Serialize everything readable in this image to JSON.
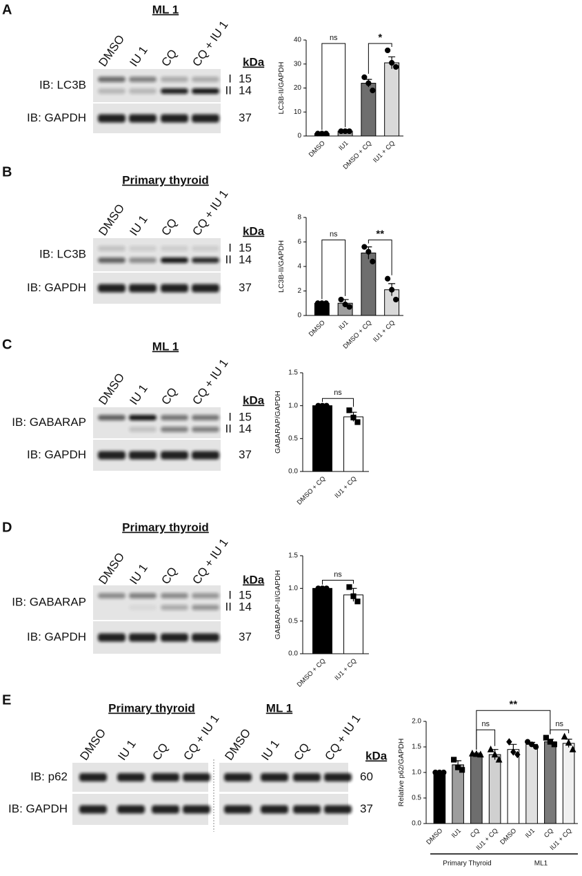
{
  "blots": [
    {
      "letter": "A",
      "kda_header": "kDa",
      "groups": [
        {
          "title": "ML 1",
          "lanes": [
            "DMSO",
            "IU 1",
            "CQ",
            "CQ + IU 1"
          ]
        }
      ],
      "rows": [
        {
          "label": "IB: LC3B",
          "bands": [
            {
              "form": "I",
              "kda": 15
            },
            {
              "form": "II",
              "kda": 14
            }
          ]
        },
        {
          "label": "IB: GAPDH",
          "bands": [
            {
              "kda": 37
            }
          ]
        }
      ]
    },
    {
      "letter": "B",
      "kda_header": "kDa",
      "groups": [
        {
          "title": "Primary thyroid",
          "lanes": [
            "DMSO",
            "IU 1",
            "CQ",
            "CQ + IU 1"
          ]
        }
      ],
      "rows": [
        {
          "label": "IB: LC3B",
          "bands": [
            {
              "form": "I",
              "kda": 15
            },
            {
              "form": "II",
              "kda": 14
            }
          ]
        },
        {
          "label": "IB: GAPDH",
          "bands": [
            {
              "kda": 37
            }
          ]
        }
      ]
    },
    {
      "letter": "C",
      "kda_header": "kDa",
      "groups": [
        {
          "title": "ML 1",
          "lanes": [
            "DMSO",
            "IU 1",
            "CQ",
            "CQ + IU 1"
          ]
        }
      ],
      "rows": [
        {
          "label": "IB: GABARAP",
          "bands": [
            {
              "form": "I",
              "kda": 15
            },
            {
              "form": "II",
              "kda": 14
            }
          ]
        },
        {
          "label": "IB: GAPDH",
          "bands": [
            {
              "kda": 37
            }
          ]
        }
      ]
    },
    {
      "letter": "D",
      "kda_header": "kDa",
      "groups": [
        {
          "title": "Primary thyroid",
          "lanes": [
            "DMSO",
            "IU 1",
            "CQ",
            "CQ + IU 1"
          ]
        }
      ],
      "rows": [
        {
          "label": "IB: GABARAP",
          "bands": [
            {
              "form": "I",
              "kda": 15
            },
            {
              "form": "II",
              "kda": 14
            }
          ]
        },
        {
          "label": "IB: GAPDH",
          "bands": [
            {
              "kda": 37
            }
          ]
        }
      ]
    },
    {
      "letter": "E",
      "kda_header": "kDa",
      "groups": [
        {
          "title": "Primary thyroid",
          "lanes": [
            "DMSO",
            "IU 1",
            "CQ",
            "CQ + IU 1"
          ]
        },
        {
          "title": "ML 1",
          "lanes": [
            "DMSO",
            "IU 1",
            "CQ",
            "CQ + IU 1"
          ]
        }
      ],
      "rows": [
        {
          "label": "IB: p62",
          "bands": [
            {
              "kda": 60
            }
          ]
        },
        {
          "label": "IB: GAPDH",
          "bands": [
            {
              "kda": 37
            }
          ]
        }
      ]
    }
  ],
  "chart_data": [
    {
      "type": "bar",
      "ylabel": "LC3B-II/GAPDH",
      "categories": [
        "DMSO",
        "IU1",
        "DMSO + CQ",
        "IU1 + CQ"
      ],
      "values": [
        1,
        2,
        22,
        30.5
      ],
      "errors": [
        0.1,
        0.2,
        1.6,
        2.5
      ],
      "points": [
        [
          1,
          1,
          1
        ],
        [
          2,
          2,
          2
        ],
        [
          24.5,
          22,
          19
        ],
        [
          35.7,
          30.5,
          28.8
        ]
      ],
      "colors": [
        "#000000",
        "#9e9e9e",
        "#6e6e6e",
        "#d9d9d9"
      ],
      "markers": [
        "circle",
        "circle",
        "circle",
        "circle"
      ],
      "ylim": [
        0,
        40
      ],
      "yticks": [
        0,
        10,
        20,
        30,
        40
      ],
      "significance": [
        {
          "label": "ns",
          "pair": [
            0,
            1
          ]
        },
        {
          "label": "*",
          "pair": [
            2,
            3
          ]
        }
      ]
    },
    {
      "type": "bar",
      "ylabel": "LC3B-II/GAPDH",
      "categories": [
        "DMSO",
        "IU1",
        "DMSO + CQ",
        "IU1 + CQ"
      ],
      "values": [
        1,
        1,
        5.1,
        2.1
      ],
      "errors": [
        0.05,
        0.3,
        0.5,
        0.5
      ],
      "points": [
        [
          1,
          1,
          1
        ],
        [
          1.3,
          0.9,
          0.7
        ],
        [
          5.6,
          5.2,
          4.4
        ],
        [
          3,
          2.1,
          1.3
        ]
      ],
      "colors": [
        "#000000",
        "#9e9e9e",
        "#6e6e6e",
        "#d9d9d9"
      ],
      "markers": [
        "circle",
        "circle",
        "circle",
        "circle"
      ],
      "ylim": [
        0,
        8
      ],
      "yticks": [
        0,
        2,
        4,
        6,
        8
      ],
      "significance": [
        {
          "label": "ns",
          "pair": [
            0,
            1
          ]
        },
        {
          "label": "**",
          "pair": [
            2,
            3
          ]
        }
      ]
    },
    {
      "type": "bar",
      "ylabel": "GABARAP/GAPDH",
      "categories": [
        "DMSO + CQ",
        "IU1 + CQ"
      ],
      "values": [
        1,
        0.83
      ],
      "errors": [
        0.005,
        0.07
      ],
      "points": [
        [
          1,
          1,
          1
        ],
        [
          0.93,
          0.82,
          0.75
        ]
      ],
      "colors": [
        "#000000",
        "#ffffff"
      ],
      "markers": [
        "circle",
        "square"
      ],
      "ylim": [
        0,
        1.5
      ],
      "yticks": [
        {
          "value": 0,
          "label": "0.0"
        },
        0.5,
        {
          "value": 1,
          "label": "1.0"
        },
        1.5
      ],
      "significance": [
        {
          "label": "ns",
          "pair": [
            0,
            1
          ]
        }
      ]
    },
    {
      "type": "bar",
      "ylabel": "GABARAP-II/GAPDH",
      "categories": [
        "DMSO + CQ",
        "IU1 + CQ"
      ],
      "values": [
        1,
        0.9
      ],
      "errors": [
        0.005,
        0.1
      ],
      "points": [
        [
          1,
          1,
          1
        ],
        [
          1.02,
          0.88,
          0.8
        ]
      ],
      "colors": [
        "#000000",
        "#ffffff"
      ],
      "markers": [
        "circle",
        "square"
      ],
      "ylim": [
        0,
        1.5
      ],
      "yticks": [
        {
          "value": 0,
          "label": "0.0"
        },
        0.5,
        {
          "value": 1,
          "label": "1.0"
        },
        1.5
      ],
      "significance": [
        {
          "label": "ns",
          "pair": [
            0,
            1
          ]
        }
      ]
    },
    {
      "type": "bar",
      "ylabel": "Relative p62/GAPDH",
      "categories": [
        "DMSO",
        "IU1",
        "CQ",
        "IU1 + CQ",
        "DMSO",
        "IU1",
        "CQ",
        "IU1 + CQ"
      ],
      "values": [
        1,
        1.15,
        1.36,
        1.35,
        1.45,
        1.55,
        1.6,
        1.57
      ],
      "errors": [
        0.01,
        0.08,
        0.02,
        0.1,
        0.1,
        0.04,
        0.05,
        0.08
      ],
      "points": [
        [
          1,
          1,
          1
        ],
        [
          1.25,
          1.1,
          1.05
        ],
        [
          1.37,
          1.36,
          1.35
        ],
        [
          1.45,
          1.35,
          1.25
        ],
        [
          1.6,
          1.4,
          1.35
        ],
        [
          1.6,
          1.55,
          1.5
        ],
        [
          1.68,
          1.6,
          1.55
        ],
        [
          1.7,
          1.58,
          1.45
        ]
      ],
      "colors": [
        "#000000",
        "#9e9e9e",
        "#6e6e6e",
        "#d0d0d0",
        "#ffffff",
        "#e0e0e0",
        "#7a7a7a",
        "#f0f0f0"
      ],
      "markers": [
        "circle",
        "square",
        "triangle",
        "triangle",
        "diamond",
        "circle",
        "square",
        "triangle"
      ],
      "ylim": [
        0,
        2
      ],
      "yticks": [
        {
          "value": 0,
          "label": "0.0"
        },
        0.5,
        {
          "value": 1,
          "label": "1.0"
        },
        1.5,
        {
          "value": 2,
          "label": "2.0"
        }
      ],
      "significance": [
        {
          "label": "ns",
          "pair": [
            2,
            3
          ]
        },
        {
          "label": "**",
          "pair": [
            2,
            6
          ]
        },
        {
          "label": "ns",
          "pair": [
            6,
            7
          ]
        }
      ],
      "groups": [
        {
          "label": "Primary Thyroid",
          "from": 0,
          "to": 3
        },
        {
          "label": "ML1",
          "from": 4,
          "to": 7
        }
      ]
    }
  ]
}
